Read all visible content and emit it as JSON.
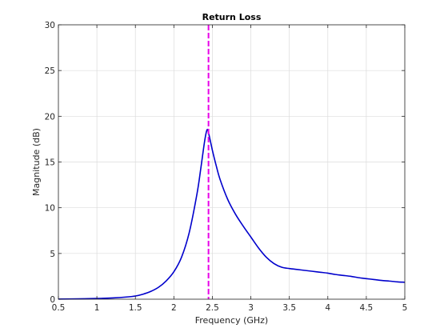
{
  "chart_data": {
    "type": "line",
    "title": "Return Loss",
    "xlabel": "Frequency (GHz)",
    "ylabel": "Magnitude (dB)",
    "xlim": [
      0.5,
      5
    ],
    "ylim": [
      0,
      30
    ],
    "xticks": [
      0.5,
      1,
      1.5,
      2,
      2.5,
      3,
      3.5,
      4,
      4.5,
      5
    ],
    "xtick_labels": [
      "0.5",
      "1",
      "1.5",
      "2",
      "2.5",
      "3",
      "3.5",
      "4",
      "4.5",
      "5"
    ],
    "yticks": [
      0,
      5,
      10,
      15,
      20,
      25,
      30
    ],
    "ytick_labels": [
      "0",
      "5",
      "10",
      "15",
      "20",
      "25",
      "30"
    ],
    "grid": true,
    "series": [
      {
        "color": "#0000cc",
        "x": [
          0.5,
          0.75,
          1.0,
          1.2,
          1.4,
          1.5,
          1.6,
          1.7,
          1.8,
          1.9,
          2.0,
          2.1,
          2.2,
          2.3,
          2.35,
          2.4,
          2.43,
          2.45,
          2.5,
          2.55,
          2.6,
          2.7,
          2.8,
          2.9,
          3.0,
          3.1,
          3.2,
          3.3,
          3.4,
          3.5,
          3.6,
          3.7,
          3.8,
          3.9,
          4.0,
          4.1,
          4.2,
          4.3,
          4.4,
          4.5,
          4.6,
          4.7,
          4.8,
          4.9,
          5.0
        ],
        "y": [
          0.02,
          0.04,
          0.08,
          0.14,
          0.25,
          0.35,
          0.55,
          0.85,
          1.3,
          2.0,
          3.0,
          4.6,
          7.3,
          11.5,
          14.3,
          17.3,
          18.5,
          18.2,
          16.3,
          14.6,
          13.1,
          10.9,
          9.3,
          8.0,
          6.8,
          5.6,
          4.6,
          3.9,
          3.5,
          3.35,
          3.25,
          3.15,
          3.05,
          2.95,
          2.85,
          2.7,
          2.6,
          2.5,
          2.35,
          2.25,
          2.15,
          2.05,
          1.98,
          1.9,
          1.85
        ]
      }
    ],
    "markers": [
      {
        "type": "vertical-line",
        "x": 2.45,
        "color": "#e800e8",
        "style": "dashed"
      }
    ]
  }
}
